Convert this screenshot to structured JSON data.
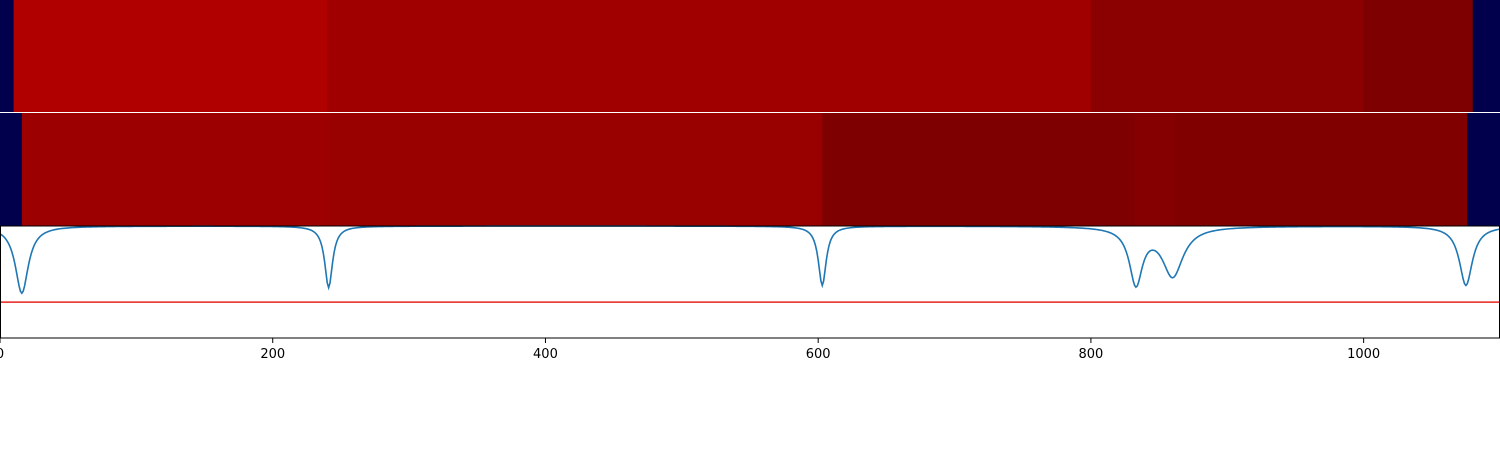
{
  "chart_data": [
    {
      "type": "heatmap",
      "title": "",
      "colormap": "seismic",
      "x_range": [
        0,
        1100
      ],
      "segments": [
        {
          "x0": 0,
          "x1": 10,
          "color": "#00004c"
        },
        {
          "x0": 10,
          "x1": 240,
          "color": "#b00000"
        },
        {
          "x0": 240,
          "x1": 800,
          "color": "#a00000"
        },
        {
          "x0": 800,
          "x1": 1000,
          "color": "#8b0000"
        },
        {
          "x0": 1000,
          "x1": 1080,
          "color": "#7e0000"
        },
        {
          "x0": 1080,
          "x1": 1100,
          "color": "#00004c"
        }
      ]
    },
    {
      "type": "heatmap",
      "title": "",
      "colormap": "seismic",
      "x_range": [
        0,
        1100
      ],
      "segments": [
        {
          "x0": 0,
          "x1": 16,
          "color": "#00004c"
        },
        {
          "x0": 16,
          "x1": 242,
          "color": "#9d0000"
        },
        {
          "x0": 242,
          "x1": 603,
          "color": "#990000"
        },
        {
          "x0": 603,
          "x1": 832,
          "color": "#7f0000"
        },
        {
          "x0": 832,
          "x1": 862,
          "color": "#850000"
        },
        {
          "x0": 862,
          "x1": 1076,
          "color": "#800000"
        },
        {
          "x0": 1076,
          "x1": 1100,
          "color": "#00004c"
        }
      ]
    },
    {
      "type": "line",
      "title": "",
      "xlabel": "",
      "ylabel": "",
      "xlim": [
        0,
        1100
      ],
      "ylim": [
        0,
        1
      ],
      "x_ticks": [
        0,
        200,
        400,
        600,
        800,
        1000
      ],
      "x_tick_labels": [
        "0",
        "200",
        "400",
        "600",
        "800",
        "1000"
      ],
      "threshold": 0.32,
      "threshold_color": "#e8221b",
      "series_color": "#1f77b4",
      "dips": [
        {
          "x": 16,
          "depth": 0.6,
          "width": 10
        },
        {
          "x": 241,
          "depth": 0.55,
          "width": 6
        },
        {
          "x": 603,
          "depth": 0.53,
          "width": 6
        },
        {
          "x": 833,
          "depth": 0.5,
          "width": 10
        },
        {
          "x": 860,
          "depth": 0.44,
          "width": 16
        },
        {
          "x": 1075,
          "depth": 0.53,
          "width": 10
        }
      ]
    }
  ]
}
